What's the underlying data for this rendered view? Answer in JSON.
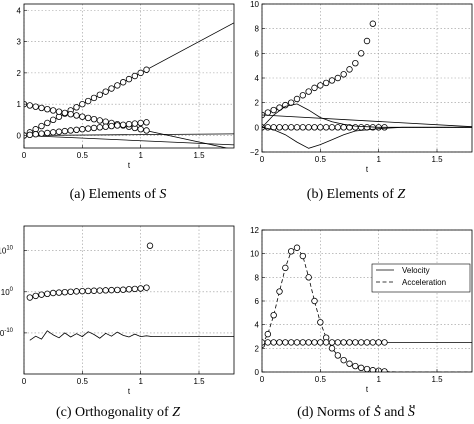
{
  "chart_data": [
    {
      "id": "a",
      "type": "line",
      "caption": "(a) Elements of S",
      "caption_prefix": "(a) Elements of ",
      "caption_symbol": "S",
      "xlabel": "t",
      "xlim": [
        0,
        1.8
      ],
      "ylim": [
        -0.4,
        4.2
      ],
      "xticks": [
        "0",
        "0.5",
        "1",
        "1.5"
      ],
      "xtick_values": [
        0,
        0.5,
        1,
        1.5
      ],
      "yticks": [
        "0",
        "1",
        "2",
        "3",
        "4"
      ],
      "ytick_values": [
        0,
        1,
        2,
        3,
        4
      ],
      "grid": true,
      "series": [
        {
          "style": "line",
          "x": [
            0,
            1.8
          ],
          "y": [
            0,
            3.6
          ]
        },
        {
          "style": "line",
          "x": [
            0,
            1.8
          ],
          "y": [
            1.0,
            -0.45
          ]
        },
        {
          "style": "line",
          "x": [
            0,
            1.8
          ],
          "y": [
            0,
            -0.3
          ]
        },
        {
          "style": "line",
          "x": [
            0,
            1.8
          ],
          "y": [
            0,
            0.05
          ]
        },
        {
          "style": "markers",
          "x": [
            0,
            0.05,
            0.1,
            0.15,
            0.2,
            0.25,
            0.3,
            0.35,
            0.4,
            0.45,
            0.5,
            0.55,
            0.6,
            0.65,
            0.7,
            0.75,
            0.8,
            0.85,
            0.9,
            0.95,
            1.0,
            1.05
          ],
          "y": [
            0,
            0.1,
            0.2,
            0.3,
            0.4,
            0.5,
            0.6,
            0.7,
            0.8,
            0.9,
            1.0,
            1.1,
            1.2,
            1.3,
            1.4,
            1.5,
            1.6,
            1.7,
            1.8,
            1.9,
            2.0,
            2.1
          ]
        },
        {
          "style": "markers",
          "x": [
            0,
            0.05,
            0.1,
            0.15,
            0.2,
            0.25,
            0.3,
            0.35,
            0.4,
            0.45,
            0.5,
            0.55,
            0.6,
            0.65,
            0.7,
            0.75,
            0.8,
            0.85,
            0.9,
            0.95,
            1.0,
            1.05
          ],
          "y": [
            1.0,
            0.96,
            0.92,
            0.88,
            0.84,
            0.8,
            0.76,
            0.72,
            0.68,
            0.64,
            0.6,
            0.56,
            0.52,
            0.48,
            0.44,
            0.4,
            0.36,
            0.32,
            0.28,
            0.24,
            0.2,
            0.16
          ]
        },
        {
          "style": "markers",
          "x": [
            0,
            0.05,
            0.1,
            0.15,
            0.2,
            0.25,
            0.3,
            0.35,
            0.4,
            0.45,
            0.5,
            0.55,
            0.6,
            0.65,
            0.7,
            0.75,
            0.8,
            0.85,
            0.9,
            0.95,
            1.0,
            1.05
          ],
          "y": [
            0,
            0.02,
            0.04,
            0.06,
            0.08,
            0.1,
            0.12,
            0.14,
            0.16,
            0.18,
            0.2,
            0.22,
            0.24,
            0.26,
            0.28,
            0.3,
            0.32,
            0.34,
            0.36,
            0.38,
            0.4,
            0.42
          ]
        }
      ]
    },
    {
      "id": "b",
      "type": "line",
      "caption": "(b) Elements of Z",
      "caption_prefix": "(b) Elements of ",
      "caption_symbol": "Z",
      "xlabel": "t",
      "xlim": [
        0,
        1.8
      ],
      "ylim": [
        -2,
        10
      ],
      "xticks": [
        "0",
        "0.5",
        "1",
        "1.5"
      ],
      "xtick_values": [
        0,
        0.5,
        1,
        1.5
      ],
      "yticks": [
        "−2",
        "0",
        "2",
        "4",
        "6",
        "8",
        "10"
      ],
      "ytick_values": [
        -2,
        0,
        2,
        4,
        6,
        8,
        10
      ],
      "grid": true,
      "series": [
        {
          "style": "markers",
          "x": [
            0,
            0.05,
            0.1,
            0.15,
            0.2,
            0.25,
            0.3,
            0.35,
            0.4,
            0.45,
            0.5,
            0.55,
            0.6,
            0.65,
            0.7,
            0.75,
            0.8,
            0.85,
            0.9,
            0.95
          ],
          "y": [
            1.0,
            1.2,
            1.4,
            1.6,
            1.8,
            2.0,
            2.3,
            2.6,
            2.9,
            3.2,
            3.4,
            3.6,
            3.8,
            4.0,
            4.3,
            4.7,
            5.2,
            6.0,
            7.0,
            8.4
          ]
        },
        {
          "style": "markers",
          "x": [
            0,
            0.05,
            0.1,
            0.15,
            0.2,
            0.25,
            0.3,
            0.35,
            0.4,
            0.45,
            0.5,
            0.55,
            0.6,
            0.65,
            0.7,
            0.75,
            0.8,
            0.85,
            0.9,
            0.95,
            1.0,
            1.05
          ],
          "y": [
            0,
            0,
            0,
            0,
            0,
            0,
            0,
            0,
            0,
            0,
            0,
            0,
            0,
            0,
            0,
            0,
            0,
            0,
            0,
            0,
            0,
            0
          ]
        },
        {
          "style": "line",
          "x": [
            0,
            0.1,
            0.2,
            0.3,
            0.4,
            0.5,
            0.6,
            0.7,
            0.8,
            1.0,
            1.2,
            1.5,
            1.8
          ],
          "y": [
            0,
            1.0,
            1.7,
            1.9,
            1.4,
            0.8,
            0.45,
            0.25,
            0.1,
            0,
            0,
            0,
            0
          ]
        },
        {
          "style": "line",
          "x": [
            0,
            0.1,
            0.2,
            0.3,
            0.4,
            0.5,
            0.6,
            0.7,
            0.8,
            1.0,
            1.2,
            1.5,
            1.8
          ],
          "y": [
            0,
            -0.2,
            -0.6,
            -1.2,
            -1.7,
            -1.4,
            -1.0,
            -0.6,
            -0.3,
            -0.1,
            0,
            0,
            0
          ]
        },
        {
          "style": "line",
          "x": [
            0,
            1.8
          ],
          "y": [
            1.0,
            0.05
          ]
        }
      ]
    },
    {
      "id": "c",
      "type": "line",
      "caption": "(c) Orthogonality of Z",
      "caption_prefix": "(c) Orthogonality of ",
      "caption_symbol": "Z",
      "xlabel": "t",
      "xlim": [
        0,
        1.8
      ],
      "ylim": [
        -20,
        16
      ],
      "log_scale": true,
      "xticks": [
        "0",
        "0.5",
        "1",
        "1.5"
      ],
      "xtick_values": [
        0,
        0.5,
        1,
        1.5
      ],
      "yticks": [
        "10",
        "10",
        "10"
      ],
      "ytick_exponents": [
        "-10",
        "0",
        "10"
      ],
      "ytick_values": [
        -10,
        0,
        10
      ],
      "grid": true,
      "series": [
        {
          "style": "markers",
          "x": [
            0.05,
            0.1,
            0.15,
            0.2,
            0.25,
            0.3,
            0.35,
            0.4,
            0.45,
            0.5,
            0.55,
            0.6,
            0.65,
            0.7,
            0.75,
            0.8,
            0.85,
            0.9,
            0.95,
            1.0,
            1.05
          ],
          "y": [
            -1.4,
            -1.0,
            -0.7,
            -0.5,
            -0.3,
            -0.2,
            -0.1,
            0,
            0.1,
            0.15,
            0.2,
            0.25,
            0.3,
            0.35,
            0.4,
            0.45,
            0.5,
            0.6,
            0.7,
            0.8,
            1.0
          ]
        },
        {
          "style": "markers",
          "x": [
            1.08
          ],
          "y": [
            11.2
          ]
        },
        {
          "style": "line",
          "x": [
            0.05,
            0.1,
            0.15,
            0.2,
            0.25,
            0.3,
            0.35,
            0.4,
            0.45,
            0.5,
            0.55,
            0.6,
            0.65,
            0.7,
            0.75,
            0.8,
            0.85,
            0.9,
            0.95,
            1.0,
            1.05,
            1.1,
            1.2,
            1.3,
            1.4,
            1.5,
            1.6,
            1.7,
            1.8
          ],
          "y": [
            -11.8,
            -10.8,
            -11.5,
            -9.5,
            -10.5,
            -11.2,
            -10.0,
            -11.0,
            -10.2,
            -10.9,
            -9.7,
            -10.4,
            -11.3,
            -10.1,
            -10.8,
            -9.8,
            -10.6,
            -11.0,
            -10.3,
            -10.9,
            -10.7,
            -10.9,
            -10.9,
            -10.9,
            -10.9,
            -10.9,
            -10.9,
            -10.9,
            -10.9
          ]
        }
      ]
    },
    {
      "id": "d",
      "type": "line",
      "caption": "(d) Norms of S and S",
      "caption_prefix": "(d) Norms of ",
      "caption_symbol": "S",
      "caption_joiner": " and ",
      "caption_symbol2": "S",
      "xlabel": "t",
      "xlim": [
        0,
        1.8
      ],
      "ylim": [
        0,
        12
      ],
      "xticks": [
        "0",
        "0.5",
        "1",
        "1.5"
      ],
      "xtick_values": [
        0,
        0.5,
        1,
        1.5
      ],
      "yticks": [
        "0",
        "2",
        "4",
        "6",
        "8",
        "10",
        "12"
      ],
      "ytick_values": [
        0,
        2,
        4,
        6,
        8,
        10,
        12
      ],
      "grid": true,
      "legend": {
        "placement": "right",
        "entries": [
          "Velocity",
          "Acceleration"
        ]
      },
      "series": [
        {
          "name": "Velocity",
          "style": "line",
          "x": [
            0,
            1.8
          ],
          "y": [
            2.5,
            2.5
          ]
        },
        {
          "name": "Acceleration",
          "style": "dashed",
          "x": [
            0,
            0.05,
            0.1,
            0.15,
            0.2,
            0.25,
            0.3,
            0.35,
            0.4,
            0.45,
            0.5,
            0.55,
            0.6,
            0.65,
            0.7,
            0.75,
            0.8,
            0.85,
            0.9,
            0.95,
            1.0,
            1.05,
            1.1,
            1.2,
            1.4,
            1.6,
            1.8
          ],
          "y": [
            2.3,
            3.2,
            4.8,
            6.8,
            8.8,
            10.2,
            10.5,
            9.8,
            8.0,
            6.0,
            4.2,
            2.9,
            2.0,
            1.4,
            1.0,
            0.7,
            0.5,
            0.35,
            0.25,
            0.15,
            0.1,
            0.05,
            0.02,
            0.01,
            0,
            0,
            0
          ]
        },
        {
          "style": "markers",
          "x": [
            0,
            0.05,
            0.1,
            0.15,
            0.2,
            0.25,
            0.3,
            0.35,
            0.4,
            0.45,
            0.5,
            0.55,
            0.6,
            0.65,
            0.7,
            0.75,
            0.8,
            0.85,
            0.9,
            0.95,
            1.0,
            1.05
          ],
          "y": [
            2.3,
            3.2,
            4.8,
            6.8,
            8.8,
            10.2,
            10.5,
            9.8,
            8.0,
            6.0,
            4.2,
            2.9,
            2.0,
            1.4,
            1.0,
            0.7,
            0.5,
            0.35,
            0.25,
            0.15,
            0.1,
            0.05
          ]
        },
        {
          "style": "markers",
          "x": [
            0,
            0.05,
            0.1,
            0.15,
            0.2,
            0.25,
            0.3,
            0.35,
            0.4,
            0.45,
            0.5,
            0.55,
            0.6,
            0.65,
            0.7,
            0.75,
            0.8,
            0.85,
            0.9,
            0.95,
            1.0,
            1.05
          ],
          "y": [
            2.5,
            2.5,
            2.5,
            2.5,
            2.5,
            2.5,
            2.5,
            2.5,
            2.5,
            2.5,
            2.5,
            2.5,
            2.5,
            2.5,
            2.5,
            2.5,
            2.5,
            2.5,
            2.5,
            2.5,
            2.5,
            2.5
          ]
        }
      ]
    }
  ]
}
